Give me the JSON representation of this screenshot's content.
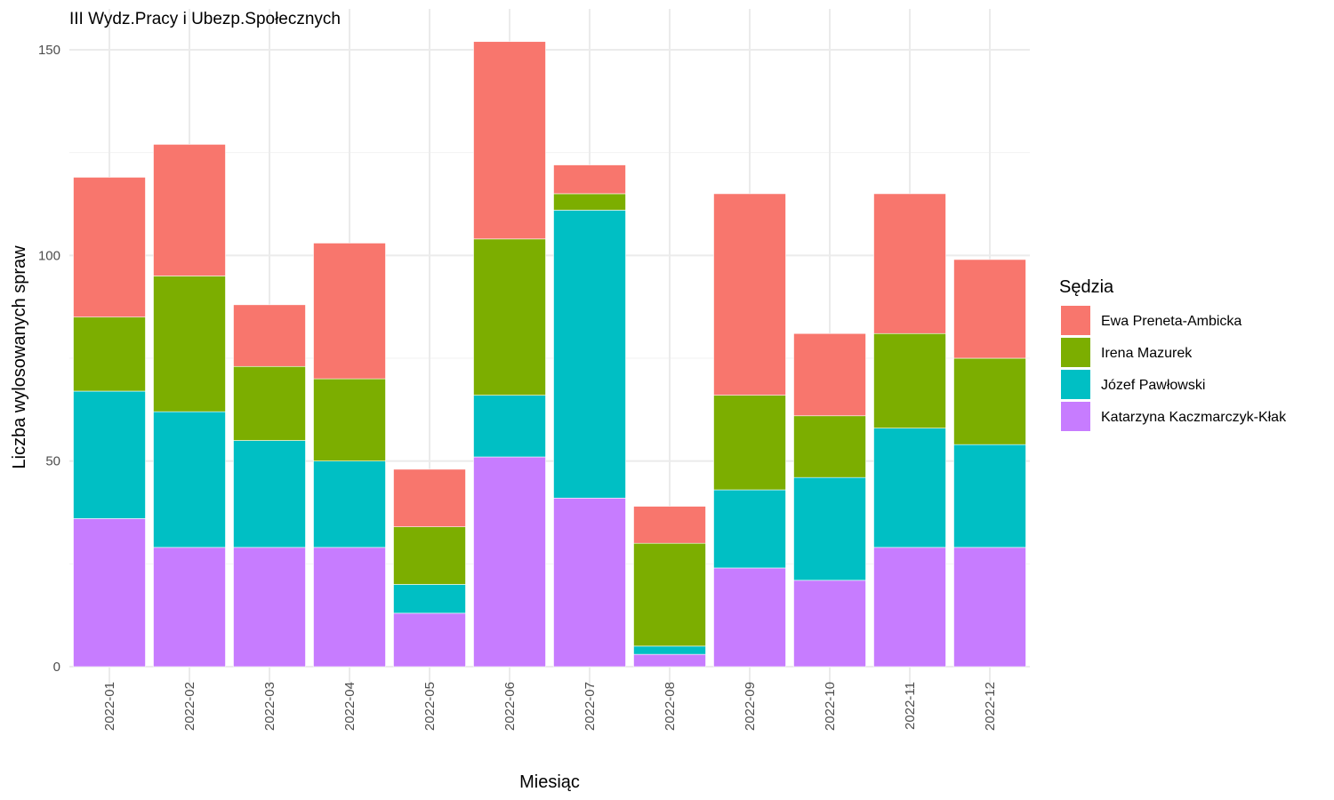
{
  "chart_data": {
    "type": "bar",
    "stacked": true,
    "title": "III Wydz.Pracy i Ubezp.Społecznych",
    "xlabel": "Miesiąc",
    "ylabel": "Liczba wylosowanych spraw",
    "ylim": [
      0,
      158
    ],
    "yticks": [
      0,
      50,
      100,
      150
    ],
    "grid": true,
    "legend_title": "Sędzia",
    "legend_position": "right",
    "categories": [
      "2022-01",
      "2022-02",
      "2022-03",
      "2022-04",
      "2022-05",
      "2022-06",
      "2022-07",
      "2022-08",
      "2022-09",
      "2022-10",
      "2022-11",
      "2022-12"
    ],
    "series": [
      {
        "name": "Katarzyna Kaczmarczyk-Kłak",
        "color": "#C77CFF",
        "values": [
          36,
          29,
          29,
          29,
          13,
          51,
          41,
          3,
          24,
          21,
          29,
          29
        ]
      },
      {
        "name": "Józef Pawłowski",
        "color": "#00BFC4",
        "values": [
          31,
          33,
          26,
          21,
          7,
          15,
          70,
          2,
          19,
          25,
          29,
          25
        ]
      },
      {
        "name": "Irena Mazurek",
        "color": "#7CAE00",
        "values": [
          18,
          33,
          18,
          20,
          14,
          38,
          4,
          25,
          23,
          15,
          23,
          21
        ]
      },
      {
        "name": "Ewa Preneta-Ambicka",
        "color": "#F8766D",
        "values": [
          34,
          32,
          15,
          33,
          14,
          48,
          7,
          9,
          49,
          20,
          34,
          24
        ]
      }
    ],
    "legend_order": [
      "Ewa Preneta-Ambicka",
      "Irena Mazurek",
      "Józef Pawłowski",
      "Katarzyna Kaczmarczyk-Kłak"
    ]
  }
}
